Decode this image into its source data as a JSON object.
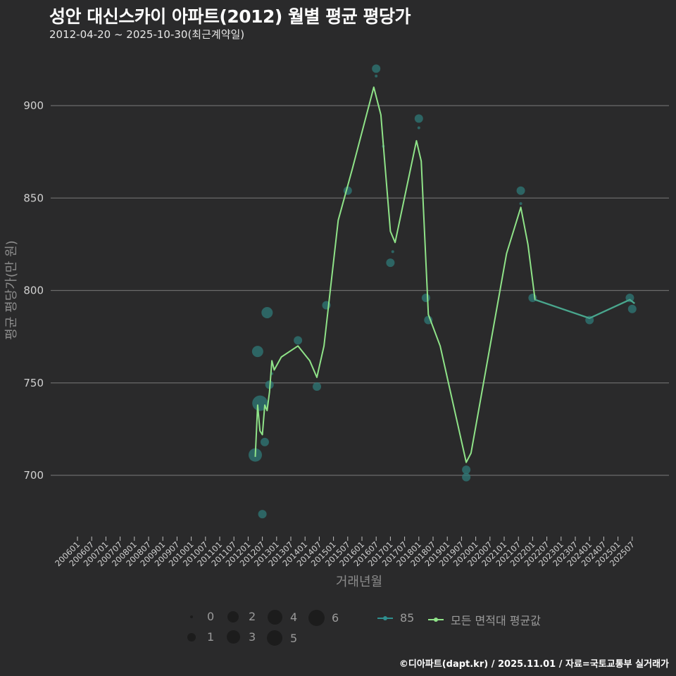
{
  "header": {
    "title": "성안 대신스카이 아파트(2012) 월별 평균 평당가",
    "subtitle": "2012-04-20 ~ 2025-10-30(최근계약일)"
  },
  "footer": {
    "credit": "©디아파트(dapt.kr) / 2025.11.01 / 자료=국토교통부 실거래가"
  },
  "legend": {
    "size_title": "",
    "sizes": [
      {
        "label": "0",
        "r": 2
      },
      {
        "label": "1",
        "r": 6
      },
      {
        "label": "2",
        "r": 8
      },
      {
        "label": "3",
        "r": 9.5
      },
      {
        "label": "4",
        "r": 10.5
      },
      {
        "label": "5",
        "r": 11
      },
      {
        "label": "6",
        "r": 11.5
      }
    ],
    "series": [
      {
        "label": "85",
        "color": "#2f8f8f"
      },
      {
        "label": "모든 면적대 평균값",
        "color": "#8fe388"
      }
    ]
  },
  "colors": {
    "background": "#2a2a2b",
    "grid": "#6b6b6b",
    "point": "#2f7a78",
    "avg_line": "#8fe388",
    "series85_line": "#2f8f8f"
  },
  "chart_data": {
    "type": "line",
    "title": "성안 대신스카이 아파트(2012) 월별 평균 평당가",
    "subtitle": "2012-04-20 ~ 2025-10-30(최근계약일)",
    "xlabel": "거래년월",
    "ylabel": "평균 평당가(만 원)",
    "ylim": [
      665,
      925
    ],
    "yticks": [
      700,
      750,
      800,
      850,
      900
    ],
    "grid": true,
    "legend_position": "bottom",
    "x_ticks": [
      "200601",
      "200607",
      "200701",
      "200707",
      "200801",
      "200807",
      "200901",
      "200907",
      "201001",
      "201007",
      "201101",
      "201107",
      "201201",
      "201207",
      "201301",
      "201307",
      "201401",
      "201407",
      "201501",
      "201507",
      "201601",
      "201607",
      "201701",
      "201707",
      "201801",
      "201807",
      "201901",
      "201907",
      "202001",
      "202007",
      "202101",
      "202107",
      "202201",
      "202207",
      "202301",
      "202307",
      "202401",
      "202407",
      "202501",
      "202507"
    ],
    "series": [
      {
        "name": "85",
        "kind": "points",
        "points": [
          {
            "x": "2012-04",
            "y": 711,
            "size": 3
          },
          {
            "x": "2012-05",
            "y": 767,
            "size": 2
          },
          {
            "x": "2012-06",
            "y": 739,
            "size": 5
          },
          {
            "x": "2012-07",
            "y": 679,
            "size": 1
          },
          {
            "x": "2012-08",
            "y": 718,
            "size": 1
          },
          {
            "x": "2012-09",
            "y": 788,
            "size": 2
          },
          {
            "x": "2012-10",
            "y": 749,
            "size": 1
          },
          {
            "x": "2012-11",
            "y": 755,
            "size": 0
          },
          {
            "x": "2013-10",
            "y": 773,
            "size": 1
          },
          {
            "x": "2014-06",
            "y": 748,
            "size": 1
          },
          {
            "x": "2014-10",
            "y": 792,
            "size": 1
          },
          {
            "x": "2015-07",
            "y": 854,
            "size": 1
          },
          {
            "x": "2016-07",
            "y": 920,
            "size": 1
          },
          {
            "x": "2016-07",
            "y": 916,
            "size": 0
          },
          {
            "x": "2016-10",
            "y": 878,
            "size": 0
          },
          {
            "x": "2017-01",
            "y": 815,
            "size": 1
          },
          {
            "x": "2017-02",
            "y": 821,
            "size": 0
          },
          {
            "x": "2018-01",
            "y": 893,
            "size": 1
          },
          {
            "x": "2018-01",
            "y": 888,
            "size": 0
          },
          {
            "x": "2018-04",
            "y": 796,
            "size": 1
          },
          {
            "x": "2018-05",
            "y": 784,
            "size": 1
          },
          {
            "x": "2019-09",
            "y": 703,
            "size": 1
          },
          {
            "x": "2019-09",
            "y": 699,
            "size": 1
          },
          {
            "x": "2021-08",
            "y": 854,
            "size": 1
          },
          {
            "x": "2021-08",
            "y": 847,
            "size": 0
          },
          {
            "x": "2022-01",
            "y": 796,
            "size": 1
          },
          {
            "x": "2024-01",
            "y": 784,
            "size": 1
          },
          {
            "x": "2025-06",
            "y": 796,
            "size": 1
          },
          {
            "x": "2025-07",
            "y": 790,
            "size": 1
          }
        ]
      },
      {
        "name": "모든 면적대 평균값",
        "kind": "line",
        "points": [
          {
            "x": "2012-04",
            "y": 710
          },
          {
            "x": "2012-05",
            "y": 738
          },
          {
            "x": "2012-06",
            "y": 724
          },
          {
            "x": "2012-07",
            "y": 722
          },
          {
            "x": "2012-08",
            "y": 738
          },
          {
            "x": "2012-09",
            "y": 735
          },
          {
            "x": "2012-10",
            "y": 745
          },
          {
            "x": "2012-11",
            "y": 762
          },
          {
            "x": "2012-12",
            "y": 757
          },
          {
            "x": "2013-03",
            "y": 764
          },
          {
            "x": "2013-10",
            "y": 770
          },
          {
            "x": "2014-03",
            "y": 762
          },
          {
            "x": "2014-06",
            "y": 753
          },
          {
            "x": "2014-09",
            "y": 770
          },
          {
            "x": "2015-03",
            "y": 838
          },
          {
            "x": "2015-09",
            "y": 866
          },
          {
            "x": "2016-06",
            "y": 910
          },
          {
            "x": "2016-09",
            "y": 895
          },
          {
            "x": "2017-01",
            "y": 832
          },
          {
            "x": "2017-03",
            "y": 826
          },
          {
            "x": "2017-12",
            "y": 881
          },
          {
            "x": "2018-02",
            "y": 870
          },
          {
            "x": "2018-05",
            "y": 787
          },
          {
            "x": "2018-10",
            "y": 770
          },
          {
            "x": "2019-09",
            "y": 707
          },
          {
            "x": "2019-11",
            "y": 712
          },
          {
            "x": "2021-02",
            "y": 820
          },
          {
            "x": "2021-08",
            "y": 845
          },
          {
            "x": "2021-11",
            "y": 825
          },
          {
            "x": "2022-02",
            "y": 795
          },
          {
            "x": "2024-01",
            "y": 785
          },
          {
            "x": "2025-06",
            "y": 795
          },
          {
            "x": "2025-08",
            "y": 793
          }
        ]
      }
    ]
  }
}
